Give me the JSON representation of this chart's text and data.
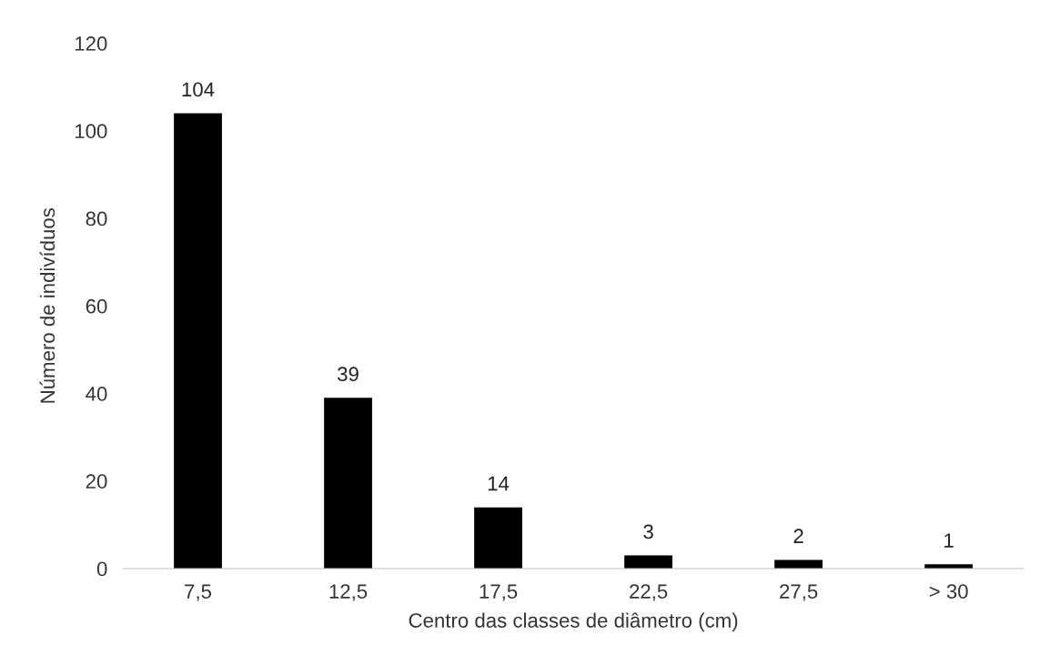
{
  "chart_data": {
    "type": "bar",
    "xlabel": "Centro das classes de diâmetro (cm)",
    "ylabel": "Número de indivíduos",
    "categories": [
      "7,5",
      "12,5",
      "17,5",
      "22,5",
      "27,5",
      "> 30"
    ],
    "values": [
      104,
      39,
      14,
      3,
      2,
      1
    ],
    "color": "#000000",
    "ylim": [
      0,
      120
    ],
    "yticks": [
      0,
      20,
      40,
      60,
      80,
      100,
      120
    ],
    "grid": false,
    "data_labels": true
  }
}
